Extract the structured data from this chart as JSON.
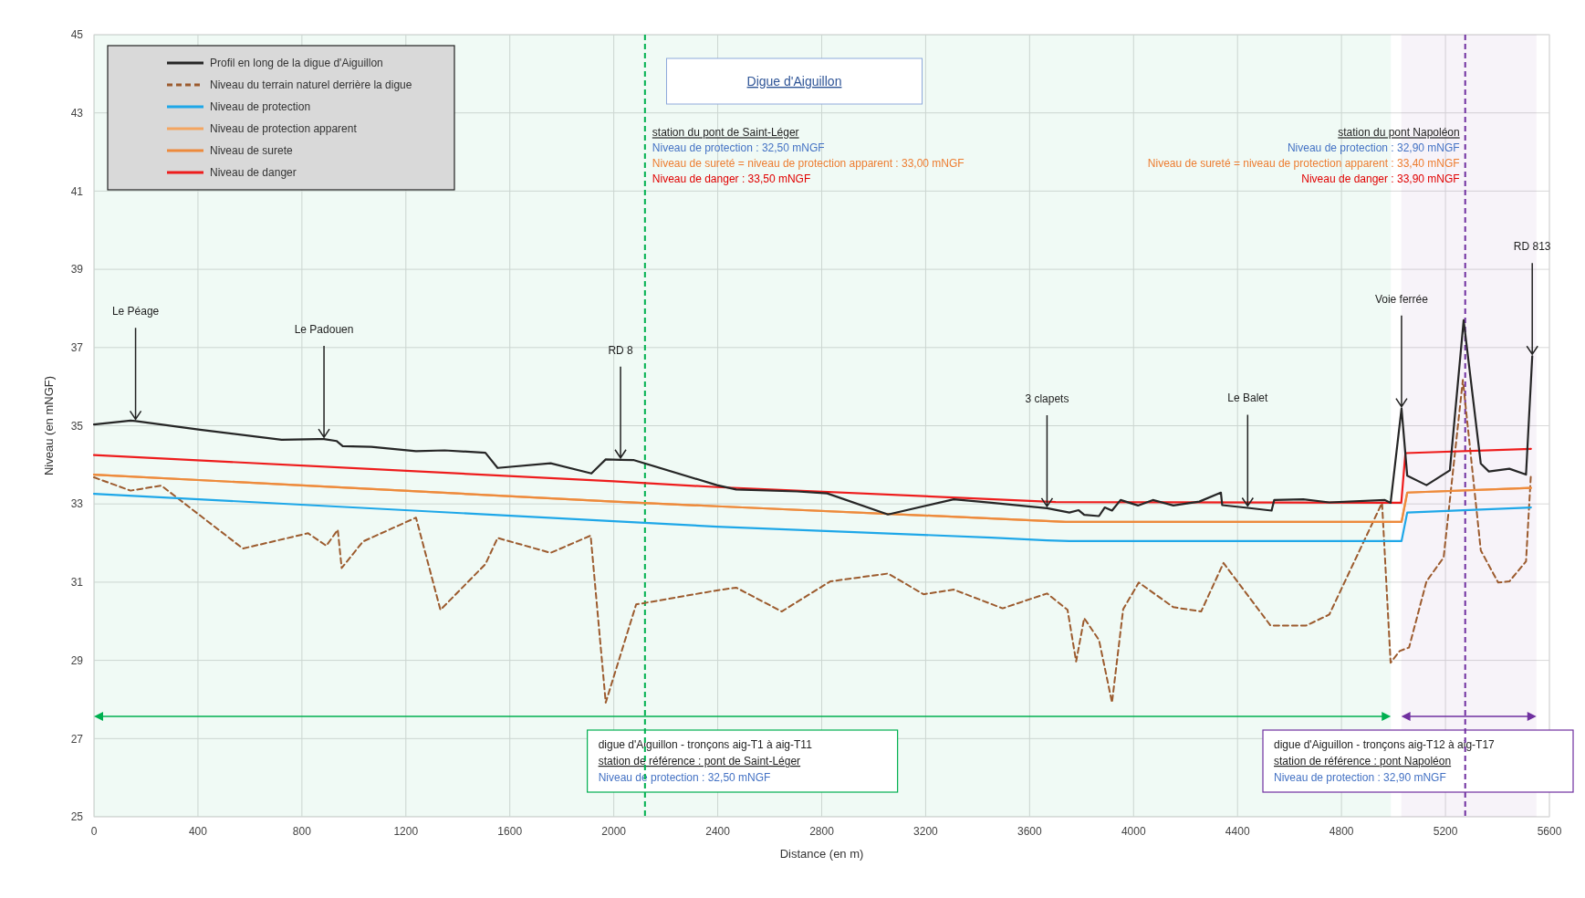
{
  "chart_data": {
    "type": "line",
    "title": "Digue d'Aiguillon",
    "xlabel": "Distance (en m)",
    "ylabel": "Niveau (en mNGF)",
    "xlim": [
      0,
      5600
    ],
    "xticks": [
      0,
      400,
      800,
      1200,
      1600,
      2000,
      2400,
      2800,
      3200,
      3600,
      4000,
      4400,
      4800,
      5200,
      5600
    ],
    "ylim": [
      25,
      45
    ],
    "yticks": [
      25,
      27,
      29,
      31,
      33,
      35,
      37,
      39,
      41,
      43,
      45
    ],
    "grid": true,
    "legend": "top left",
    "series": [
      {
        "name": "Profil en long de la digue d'Aiguillon",
        "color": "#262626",
        "x": [
          0,
          141,
          160,
          408,
          722,
          863,
          885,
          933,
          957,
          1067,
          1239,
          1349,
          1506,
          1553,
          1757,
          1914,
          1969,
          2026,
          2078,
          2397,
          2471,
          2705,
          2821,
          3055,
          3308,
          3453,
          3667,
          3753,
          3789,
          3810,
          3867,
          3889,
          3917,
          3950,
          4017,
          4074,
          4153,
          4253,
          4336,
          4341,
          4439,
          4531,
          4541,
          4653,
          4753,
          4967,
          4989,
          5031,
          5053,
          5127,
          5217,
          5270,
          5336,
          5367,
          5446,
          5510,
          5534
        ],
        "values": [
          35.03,
          35.13,
          35.12,
          34.9,
          34.64,
          34.66,
          34.66,
          34.61,
          34.48,
          34.46,
          34.35,
          34.37,
          34.31,
          33.92,
          34.04,
          33.78,
          34.14,
          34.13,
          34.12,
          33.48,
          33.37,
          33.32,
          33.27,
          32.73,
          33.12,
          33.03,
          32.89,
          32.78,
          32.84,
          32.72,
          32.69,
          32.91,
          32.83,
          33.1,
          32.96,
          33.1,
          32.96,
          33.06,
          33.29,
          32.97,
          32.9,
          32.83,
          33.1,
          33.12,
          33.04,
          33.1,
          33.03,
          35.44,
          33.72,
          33.48,
          33.86,
          37.7,
          34.03,
          33.83,
          33.9,
          33.75,
          36.78
        ]
      },
      {
        "name": "Niveau du terrain naturel derrière la digue",
        "color": "#9c5b2e",
        "line_style": "dashed",
        "x": [
          0,
          141,
          259,
          573,
          824,
          894,
          938,
          953,
          1035,
          1239,
          1333,
          1506,
          1553,
          1757,
          1911,
          1969,
          2086,
          2397,
          2471,
          2646,
          2833,
          3055,
          3192,
          3308,
          3496,
          3667,
          3746,
          3779,
          3810,
          3867,
          3917,
          3960,
          4020,
          4153,
          4260,
          4346,
          4527,
          4664,
          4753,
          4956,
          4989,
          5024,
          5060,
          5127,
          5193,
          5267,
          5336,
          5403,
          5446,
          5510,
          5529
        ],
        "values": [
          33.68,
          33.34,
          33.47,
          31.86,
          32.25,
          31.93,
          32.34,
          31.36,
          32.04,
          32.65,
          30.29,
          31.46,
          32.13,
          31.75,
          32.19,
          27.92,
          30.43,
          30.79,
          30.86,
          30.25,
          31.02,
          31.22,
          30.69,
          30.81,
          30.33,
          30.71,
          30.29,
          28.97,
          30.08,
          29.52,
          27.92,
          30.31,
          30.99,
          30.36,
          30.25,
          31.49,
          29.89,
          29.89,
          30.17,
          33.03,
          28.94,
          29.24,
          29.33,
          31.02,
          31.63,
          36.17,
          31.81,
          30.99,
          31.02,
          31.53,
          33.78
        ]
      },
      {
        "name": "Niveau de protection",
        "color": "#1ea7e8",
        "x": [
          0,
          2000,
          2397,
          3453,
          3667,
          3753,
          5031,
          5053,
          5529
        ],
        "values": [
          33.26,
          32.56,
          32.42,
          32.14,
          32.07,
          32.05,
          32.05,
          32.78,
          32.91
        ]
      },
      {
        "name": "Niveau de protection apparent",
        "color": "#f4a560",
        "x": [
          0,
          2000,
          2397,
          3453,
          3739,
          5031,
          5053,
          5529
        ],
        "values": [
          33.75,
          33.06,
          32.94,
          32.63,
          32.54,
          32.54,
          33.29,
          33.41
        ]
      },
      {
        "name": "Niveau de surete",
        "color": "#ed8a3c",
        "x": [
          0,
          2000,
          2397,
          3453,
          3739,
          5031,
          5053,
          5529
        ],
        "values": [
          33.75,
          33.06,
          32.94,
          32.63,
          32.54,
          32.54,
          33.29,
          33.41
        ]
      },
      {
        "name": "Niveau de danger",
        "color": "#ee1c1c",
        "x": [
          0,
          2000,
          2397,
          3700,
          5030,
          5046,
          5529
        ],
        "values": [
          34.25,
          33.58,
          33.43,
          33.05,
          33.03,
          34.3,
          34.41
        ]
      }
    ],
    "annotations": [
      {
        "text": "Le Péage",
        "x": 160,
        "y": 35.12
      },
      {
        "text": "Le Padouen",
        "x": 885,
        "y": 34.66
      },
      {
        "text": "RD 8",
        "x": 2026,
        "y": 34.13
      },
      {
        "text": "3 clapets",
        "x": 3667,
        "y": 32.89
      },
      {
        "text": "Le Balet",
        "x": 4439,
        "y": 32.9
      },
      {
        "text": "Voie ferrée",
        "x": 5031,
        "y": 35.44
      },
      {
        "text": "RD 813",
        "x": 5534,
        "y": 36.78
      },
      {
        "text": "station du pont de Saint-Léger\nNiveau de protection : 32,50 mNGF\nNiveau de sureté = niveau de protection apparent : 33,00 mNGF\nNiveau de danger : 33,50 mNGF",
        "x": 2120,
        "y": 42.4
      },
      {
        "text": "station du pont Napoléon\nNiveau de protection : 32,90 mNGF\nNiveau de sureté = niveau de protection apparent : 33,40 mNGF\nNiveau de danger : 33,90 mNGF",
        "x": 5276,
        "y": 42.4
      }
    ],
    "ref_lines": [
      {
        "axis": "x",
        "value": 2120,
        "color": "#00b050",
        "line_style": "dashed"
      },
      {
        "axis": "x",
        "value": 5276,
        "color": "#7030a0",
        "line_style": "dashed"
      }
    ],
    "bands": [
      {
        "axis": "x",
        "from": 0,
        "to": 4990,
        "color": "#00b050",
        "label": "digue d'Aiguillon - tronçons aig-T1 à aig-T11\nstation de référence : pont de Saint-Léger\nNiveau de protection : 32,50 mNGF"
      },
      {
        "axis": "x",
        "from": 5030,
        "to": 5550,
        "color": "#7030a0",
        "label": "digue d'Aiguillon - tronçons aig-T12 à aig-T17\nstation de référence : pont Napoléon\nNiveau de protection : 32,90 mNGF"
      }
    ]
  }
}
